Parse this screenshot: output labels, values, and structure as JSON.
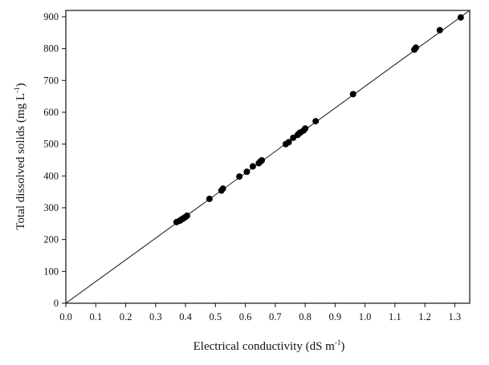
{
  "chart_data": {
    "type": "scatter",
    "title": "",
    "xlabel": "Electrical conductivity (dS m",
    "xlabel_sup": "-1",
    "xlabel_end": ")",
    "ylabel": "Total dissolved solids (mg L",
    "ylabel_sup": "-1",
    "ylabel_end": ")",
    "xlim": [
      0,
      1.35
    ],
    "ylim": [
      0,
      920
    ],
    "xticks": [
      "0.0",
      "0.1",
      "0.2",
      "0.3",
      "0.4",
      "0.5",
      "0.6",
      "0.7",
      "0.8",
      "0.9",
      "1.0",
      "1.1",
      "1.2",
      "1.3"
    ],
    "yticks": [
      "0",
      "100",
      "200",
      "300",
      "400",
      "500",
      "600",
      "700",
      "800",
      "900"
    ],
    "grid": false,
    "fit_line": {
      "x": [
        0,
        1.35
      ],
      "y": [
        0,
        920
      ]
    },
    "points": [
      [
        0.37,
        255
      ],
      [
        0.38,
        259
      ],
      [
        0.385,
        262
      ],
      [
        0.39,
        265
      ],
      [
        0.395,
        268
      ],
      [
        0.4,
        271
      ],
      [
        0.405,
        275
      ],
      [
        0.48,
        328
      ],
      [
        0.52,
        354
      ],
      [
        0.525,
        360
      ],
      [
        0.58,
        398
      ],
      [
        0.605,
        413
      ],
      [
        0.625,
        430
      ],
      [
        0.645,
        440
      ],
      [
        0.65,
        445
      ],
      [
        0.655,
        449
      ],
      [
        0.735,
        500
      ],
      [
        0.745,
        506
      ],
      [
        0.76,
        520
      ],
      [
        0.775,
        529
      ],
      [
        0.78,
        534
      ],
      [
        0.785,
        537
      ],
      [
        0.795,
        543
      ],
      [
        0.8,
        549
      ],
      [
        0.835,
        572
      ],
      [
        0.96,
        657
      ],
      [
        1.165,
        797
      ],
      [
        1.17,
        803
      ],
      [
        1.25,
        858
      ],
      [
        1.32,
        898
      ]
    ]
  }
}
